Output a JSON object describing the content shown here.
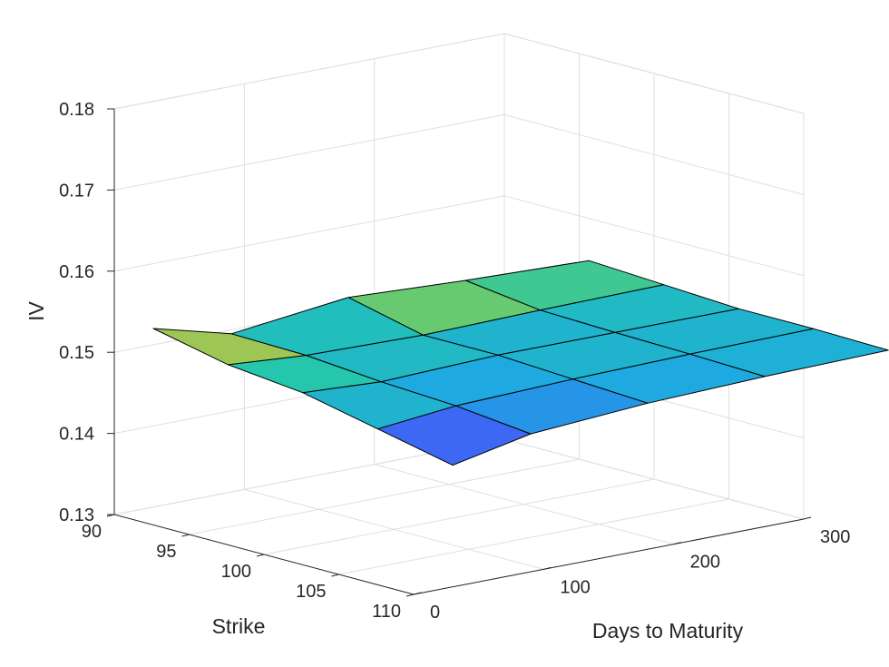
{
  "chart_data": {
    "type": "surface",
    "title": "",
    "xlabel": "Strike",
    "ylabel": "Days to Maturity",
    "zlabel": "IV",
    "xlim": [
      90,
      110
    ],
    "ylim": [
      0,
      300
    ],
    "zlim": [
      0.13,
      0.18
    ],
    "x_ticks": [
      "90",
      "95",
      "100",
      "105",
      "110"
    ],
    "y_ticks": [
      "0",
      "100",
      "200",
      "300"
    ],
    "z_ticks": [
      "0.13",
      "0.14",
      "0.15",
      "0.16",
      "0.17",
      "0.18"
    ],
    "grid": true,
    "colormap": [
      "#3e26a8",
      "#3f62f5",
      "#1ea9e2",
      "#24c6ac",
      "#7ccb5e",
      "#f5ba3b",
      "#f9fb15"
    ],
    "clim": [
      0.1453,
      0.1547
    ],
    "surface": {
      "strike": [
        90,
        95,
        100,
        105,
        110
      ],
      "days": [
        30,
        90,
        180,
        270,
        365
      ],
      "iv": [
        [
          0.152,
          0.1495,
          0.1512,
          0.1505,
          0.15
        ],
        [
          0.15,
          0.1493,
          0.149,
          0.1493,
          0.1495
        ],
        [
          0.149,
          0.1485,
          0.149,
          0.149,
          0.149
        ],
        [
          0.147,
          0.148,
          0.1485,
          0.1488,
          0.149
        ],
        [
          0.145,
          0.147,
          0.148,
          0.1485,
          0.1488
        ]
      ]
    }
  }
}
